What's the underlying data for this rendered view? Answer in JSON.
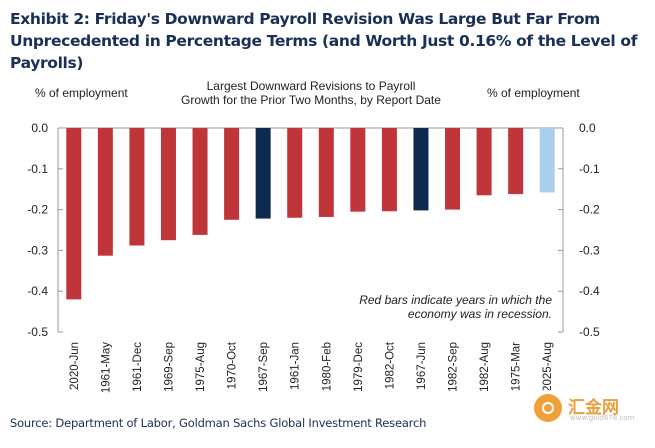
{
  "exhibit_title": "Exhibit 2: Friday's Downward Payroll Revision Was Large But Far From Unprecedented in Percentage Terms (and Worth Just 0.16% of the Level of Payrolls)",
  "source": "Source: Department of Labor, Goldman Sachs Global Investment Research",
  "watermark": {
    "text": "汇金网",
    "url": "www.gold678.com"
  },
  "colors": {
    "recession": "#c0353a",
    "non_recession": "#0d2b4e",
    "current": "#a8d0ea",
    "axis": "#999999",
    "text": "#222222",
    "title": "#1a2f54"
  },
  "chart_data": {
    "type": "bar",
    "title": "Largest Downward Revisions to Payroll Growth for the Prior Two Months, by Report Date",
    "title_lines": [
      "Largest Downward  Revisions to Payroll",
      "Growth for the Prior Two  Months, by Report Date"
    ],
    "ylabel_left": "% of employment",
    "ylabel_right": "% of employment",
    "ylim": [
      -0.5,
      0.0
    ],
    "yticks": [
      0.0,
      -0.1,
      -0.2,
      -0.3,
      -0.4,
      -0.5
    ],
    "ytick_labels": [
      "0.0",
      "-0.1",
      "-0.2",
      "-0.3",
      "-0.4",
      "-0.5"
    ],
    "grid": false,
    "categories": [
      "2020-Jun",
      "1961-May",
      "1961-Dec",
      "1969-Sep",
      "1975-Aug",
      "1970-Oct",
      "1967-Sep",
      "1961-Jan",
      "1980-Feb",
      "1979-Dec",
      "1982-Oct",
      "1967-Jun",
      "1982-Sep",
      "1982-Aug",
      "1975-Mar",
      "2025-Aug"
    ],
    "values": [
      -0.42,
      -0.313,
      -0.288,
      -0.275,
      -0.262,
      -0.225,
      -0.222,
      -0.22,
      -0.218,
      -0.205,
      -0.204,
      -0.202,
      -0.2,
      -0.165,
      -0.162,
      -0.158
    ],
    "bar_group": [
      "recession",
      "recession",
      "recession",
      "recession",
      "recession",
      "recession",
      "non_recession",
      "recession",
      "recession",
      "recession",
      "recession",
      "non_recession",
      "recession",
      "recession",
      "recession",
      "current"
    ],
    "annotation_lines": [
      "Red bars indicate years in which the",
      "economy was in recession."
    ]
  }
}
